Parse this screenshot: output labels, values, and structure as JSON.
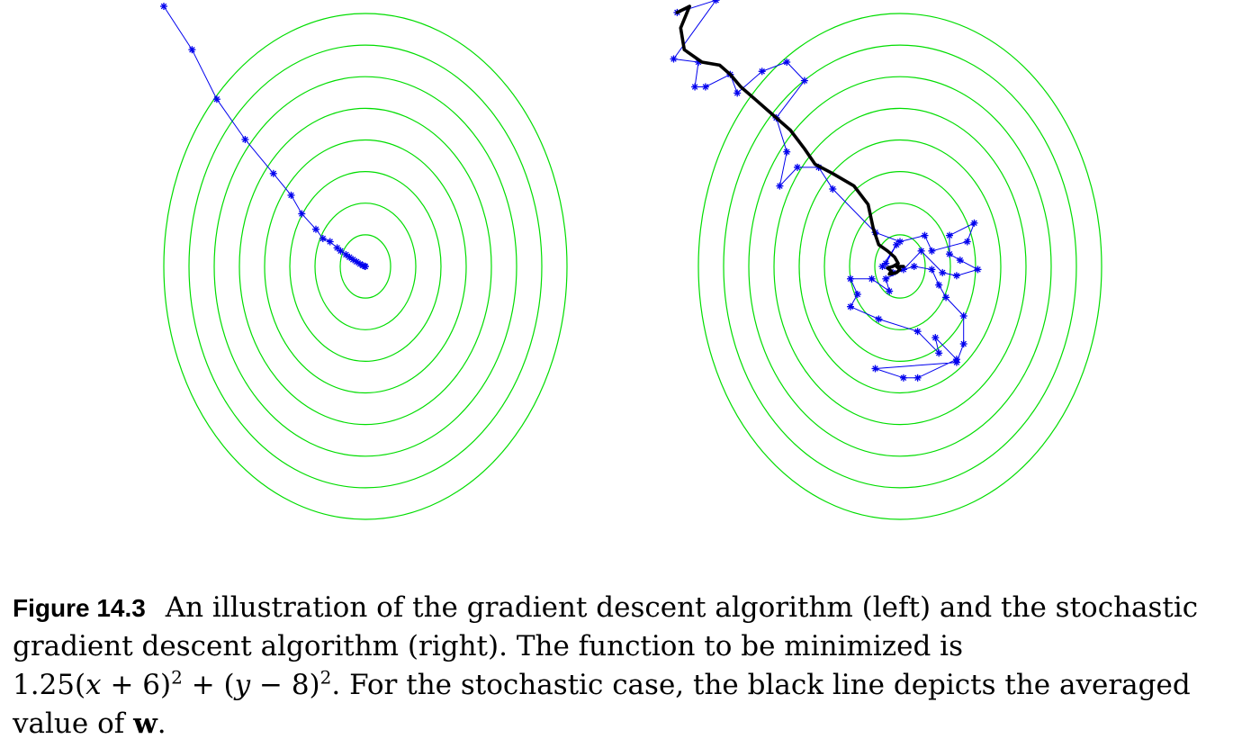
{
  "chart_data": [
    {
      "type": "line",
      "panel": "left",
      "method": "gradient descent",
      "contours": {
        "function": "1.25(x + 6)^2 + (y - 8)^2",
        "levels": 8,
        "color": "#00dd00"
      },
      "series": [
        {
          "marker": "asterisk",
          "color": "#0000ee",
          "points": [
            [
              -11.7,
              16.4
            ],
            [
              -10.9,
              15.0
            ],
            [
              -10.2,
              13.4
            ],
            [
              -9.4,
              12.1
            ],
            [
              -8.6,
              11.0
            ],
            [
              -8.1,
              10.3
            ],
            [
              -7.8,
              9.7
            ],
            [
              -7.4,
              9.2
            ],
            [
              -7.2,
              8.9
            ],
            [
              -7.0,
              8.8
            ],
            [
              -6.8,
              8.6
            ],
            [
              -6.7,
              8.5
            ],
            [
              -6.55,
              8.38
            ],
            [
              -6.45,
              8.3
            ],
            [
              -6.35,
              8.22
            ],
            [
              -6.25,
              8.15
            ],
            [
              -6.15,
              8.08
            ],
            [
              -6.07,
              8.03
            ],
            [
              -6.02,
              8.01
            ],
            [
              -6.0,
              8.0
            ]
          ]
        }
      ]
    },
    {
      "type": "line",
      "panel": "right",
      "method": "stochastic gradient descent",
      "contours": {
        "function": "1.25(x + 6)^2 + (y - 8)^2",
        "levels": 8,
        "color": "#00dd00"
      },
      "series": [
        {
          "marker": "asterisk",
          "color": "#0000ee",
          "points": [
            [
              -12.3,
              16.2
            ],
            [
              -11.2,
              16.6
            ],
            [
              -12.4,
              14.7
            ],
            [
              -11.7,
              14.6
            ],
            [
              -11.8,
              13.8
            ],
            [
              -11.5,
              13.8
            ],
            [
              -10.8,
              14.2
            ],
            [
              -10.6,
              13.6
            ],
            [
              -9.9,
              14.3
            ],
            [
              -9.2,
              14.6
            ],
            [
              -8.7,
              14.0
            ],
            [
              -9.5,
              12.8
            ],
            [
              -9.2,
              11.7
            ],
            [
              -9.4,
              10.6
            ],
            [
              -8.9,
              11.2
            ],
            [
              -8.3,
              11.2
            ],
            [
              -7.9,
              10.5
            ],
            [
              -6.7,
              9.1
            ],
            [
              -6.0,
              8.8
            ],
            [
              -5.3,
              9.0
            ],
            [
              -5.1,
              8.5
            ],
            [
              -4.1,
              8.8
            ],
            [
              -3.9,
              9.4
            ],
            [
              -4.6,
              9.0
            ],
            [
              -4.6,
              8.4
            ],
            [
              -4.3,
              8.2
            ],
            [
              -3.8,
              7.9
            ],
            [
              -4.4,
              7.7
            ],
            [
              -4.8,
              7.8
            ],
            [
              -5.4,
              8.5
            ],
            [
              -5.9,
              7.9
            ],
            [
              -6.4,
              7.6
            ],
            [
              -6.3,
              7.2
            ],
            [
              -6.8,
              7.6
            ],
            [
              -7.4,
              7.6
            ],
            [
              -7.2,
              7.1
            ],
            [
              -7.4,
              6.7
            ],
            [
              -6.6,
              6.3
            ],
            [
              -5.5,
              5.9
            ],
            [
              -4.9,
              5.2
            ],
            [
              -5.0,
              5.7
            ],
            [
              -4.4,
              5.0
            ],
            [
              -5.5,
              4.4
            ],
            [
              -5.9,
              4.4
            ],
            [
              -6.7,
              4.7
            ],
            [
              -4.4,
              4.9
            ],
            [
              -4.2,
              5.5
            ],
            [
              -4.2,
              6.4
            ],
            [
              -4.7,
              7.0
            ],
            [
              -4.9,
              7.4
            ],
            [
              -5.1,
              7.9
            ],
            [
              -5.6,
              8.0
            ],
            [
              -6.2,
              7.8
            ],
            [
              -6.5,
              8.0
            ],
            [
              -6.1,
              8.7
            ],
            [
              -6.4,
              8.1
            ]
          ]
        },
        {
          "name": "averaged w",
          "marker": "none",
          "color": "#000000",
          "points": [
            [
              -12.3,
              16.2
            ],
            [
              -11.95,
              16.4
            ],
            [
              -12.2,
              15.7
            ],
            [
              -12.1,
              15.0
            ],
            [
              -11.6,
              14.6
            ],
            [
              -11.1,
              14.5
            ],
            [
              -10.8,
              14.2
            ],
            [
              -10.5,
              13.8
            ],
            [
              -10.1,
              13.4
            ],
            [
              -9.6,
              12.9
            ],
            [
              -9.1,
              12.4
            ],
            [
              -8.7,
              11.8
            ],
            [
              -8.4,
              11.3
            ],
            [
              -7.9,
              11.0
            ],
            [
              -7.3,
              10.6
            ],
            [
              -6.9,
              10.0
            ],
            [
              -6.75,
              9.2
            ],
            [
              -6.6,
              8.7
            ],
            [
              -6.35,
              8.5
            ],
            [
              -6.15,
              8.3
            ],
            [
              -6.05,
              8.1
            ],
            [
              -6.2,
              8.0
            ],
            [
              -6.35,
              7.95
            ],
            [
              -6.25,
              7.85
            ],
            [
              -6.3,
              7.75
            ],
            [
              -6.1,
              7.8
            ],
            [
              -6.0,
              7.9
            ],
            [
              -6.1,
              8.0
            ],
            [
              -5.9,
              8.0
            ]
          ]
        }
      ]
    }
  ],
  "caption": {
    "label": "Figure 14.3",
    "text_before_math": "An illustration of the gradient descent algorithm (left) and the stochastic gradient descent algorithm (right). The function to be minimized is",
    "math_coef": "1.25(",
    "math_x": "x",
    "math_mid1": " + 6)",
    "math_exp1": "2",
    "math_mid2": " + (",
    "math_y": "y",
    "math_mid3": " − 8)",
    "math_exp2": "2",
    "text_after_math": ". For the stochastic case, the black line depicts the averaged value of",
    "bold_symbol": "w",
    "end": "."
  }
}
